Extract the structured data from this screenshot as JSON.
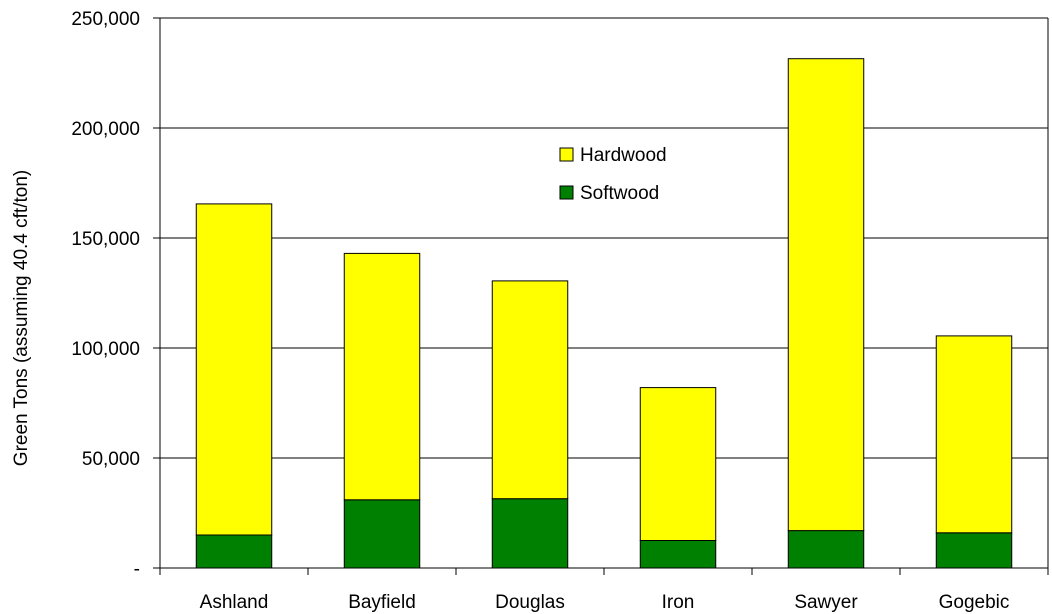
{
  "chart_data": {
    "type": "bar",
    "stacked": true,
    "title": "",
    "xlabel": "",
    "ylabel": "Green Tons (assuming 40.4 cft/ton)",
    "categories": [
      "Ashland",
      "Bayfield",
      "Douglas",
      "Iron",
      "Sawyer",
      "Gogebic"
    ],
    "series": [
      {
        "name": "Softwood",
        "color": "#008000",
        "values": [
          15000,
          31000,
          31500,
          12500,
          17000,
          16000
        ]
      },
      {
        "name": "Hardwood",
        "color": "#ffff00",
        "values": [
          150500,
          112000,
          99000,
          69500,
          214500,
          89500
        ]
      }
    ],
    "ylim": [
      0,
      250000
    ],
    "yticks": [
      {
        "value": 0,
        "label": "-"
      },
      {
        "value": 50000,
        "label": "50,000"
      },
      {
        "value": 100000,
        "label": "100,000"
      },
      {
        "value": 150000,
        "label": "150,000"
      },
      {
        "value": 200000,
        "label": "200,000"
      },
      {
        "value": 250000,
        "label": "250,000"
      }
    ],
    "grid": true,
    "legend_position": "inside-top-center",
    "legend_order": [
      "Hardwood",
      "Softwood"
    ]
  }
}
